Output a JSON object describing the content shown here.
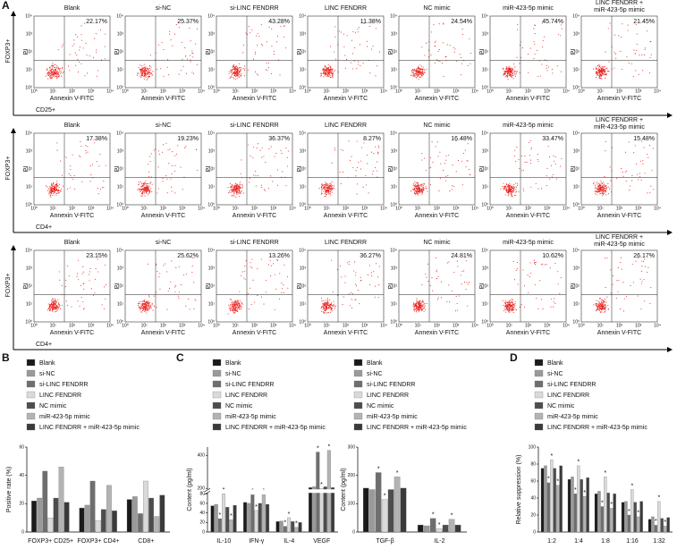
{
  "panel_labels": [
    "A",
    "B",
    "C",
    "D"
  ],
  "flow": {
    "titles": [
      "Blank",
      "si-NC",
      "si-LINC FENDRR",
      "LINC FENDRR",
      "NC mimic",
      "miR-423-5p mimic",
      [
        "LINC FENDRR +",
        "miR-423-5p mimic"
      ]
    ],
    "y_label": "PI",
    "x_label": "Annexin V-FITC",
    "ticks": [
      "10⁰",
      "10¹",
      "10²",
      "10³",
      "10⁴"
    ],
    "rows": [
      {
        "y_axis": "FOXP3+",
        "x_axis": "CD25+",
        "percents": [
          "22.17%",
          "25.37%",
          "43.28%",
          "11.38%",
          "24.54%",
          "45.74%",
          "21.45%"
        ]
      },
      {
        "y_axis": "FOXP3+",
        "x_axis": "CD4+",
        "percents": [
          "17.38%",
          "19.23%",
          "36.37%",
          "8.27%",
          "16.48%",
          "33.47%",
          "15.48%"
        ]
      },
      {
        "y_axis": "FOXP3+",
        "x_axis": "CD4+",
        "percents": [
          "23.15%",
          "25.62%",
          "13.26%",
          "36.27%",
          "24.81%",
          "10.62%",
          "26.17%"
        ]
      }
    ]
  },
  "chart_data": [
    {
      "type": "bar",
      "y_label": "Positive rate (%)",
      "categories": [
        "FOXP3+ CD25+",
        "FOXP3+ CD4+",
        "CD8+"
      ],
      "ylim": [
        0,
        60
      ],
      "yticks": [
        0,
        20,
        40,
        60
      ],
      "series": [
        {
          "name": "Blank",
          "color": "#1a1a1a",
          "values": [
            22,
            17,
            23
          ]
        },
        {
          "name": "si-NC",
          "color": "#9a9a9a",
          "values": [
            24,
            19,
            25
          ]
        },
        {
          "name": "si-LINC FENDRR",
          "color": "#6e6e6e",
          "values": [
            43,
            36,
            13
          ]
        },
        {
          "name": "LINC FENDRR",
          "color": "#dadada",
          "values": [
            10,
            8,
            36
          ]
        },
        {
          "name": "NC mimic",
          "color": "#4d4d4d",
          "values": [
            24,
            16,
            24
          ]
        },
        {
          "name": "miR-423-5p mimic",
          "color": "#b3b3b3",
          "values": [
            46,
            33,
            11
          ]
        },
        {
          "name": "LINC FENDRR + miR-423-5p mimic",
          "color": "#3a3a3a",
          "values": [
            21,
            15,
            26
          ]
        }
      ]
    },
    {
      "type": "bar",
      "y_label": "Content (pg/ml)",
      "categories": [
        "IL-10",
        "IFN-γ",
        "IL-4",
        "VEGF"
      ],
      "ylim": [
        0,
        450
      ],
      "ybreak": [
        80,
        200
      ],
      "yticks": [
        0,
        20,
        40,
        60,
        80,
        200,
        400
      ],
      "significance_symbol": "*",
      "significant_series": [
        2,
        3,
        5
      ],
      "series": [
        {
          "name": "Blank",
          "color": "#1a1a1a",
          "values": [
            55,
            62,
            22,
            205
          ]
        },
        {
          "name": "si-NC",
          "color": "#9a9a9a",
          "values": [
            58,
            60,
            23,
            210
          ]
        },
        {
          "name": "si-LINC FENDRR",
          "color": "#6e6e6e",
          "values": [
            28,
            78,
            12,
            420
          ]
        },
        {
          "name": "LINC FENDRR",
          "color": "#dadada",
          "values": [
            80,
            45,
            30,
            200
          ]
        },
        {
          "name": "NC mimic",
          "color": "#4d4d4d",
          "values": [
            52,
            60,
            22,
            210
          ]
        },
        {
          "name": "miR-423-5p mimic",
          "color": "#b3b3b3",
          "values": [
            26,
            78,
            10,
            430
          ]
        },
        {
          "name": "LINC FENDRR + miR-423-5p mimic",
          "color": "#3a3a3a",
          "values": [
            56,
            58,
            20,
            205
          ]
        }
      ]
    },
    {
      "type": "bar",
      "y_label": "Content (pg/ml)",
      "categories": [
        "TGF-β",
        "IL-2"
      ],
      "ylim": [
        0,
        300
      ],
      "yticks": [
        0,
        100,
        200,
        300
      ],
      "significance_symbol": "*",
      "significant_series": [
        2,
        3,
        5
      ],
      "series": [
        {
          "name": "Blank",
          "color": "#1a1a1a",
          "values": [
            155,
            25
          ]
        },
        {
          "name": "si-NC",
          "color": "#9a9a9a",
          "values": [
            150,
            22
          ]
        },
        {
          "name": "si-LINC FENDRR",
          "color": "#6e6e6e",
          "values": [
            210,
            48
          ]
        },
        {
          "name": "LINC FENDRR",
          "color": "#dadada",
          "values": [
            115,
            12
          ]
        },
        {
          "name": "NC mimic",
          "color": "#4d4d4d",
          "values": [
            150,
            25
          ]
        },
        {
          "name": "miR-423-5p mimic",
          "color": "#b3b3b3",
          "values": [
            195,
            45
          ]
        },
        {
          "name": "LINC FENDRR + miR-423-5p mimic",
          "color": "#3a3a3a",
          "values": [
            155,
            25
          ]
        }
      ]
    },
    {
      "type": "bar",
      "y_label": "Relative suppression (%)",
      "categories": [
        "1:2",
        "1:4",
        "1:8",
        "1:16",
        "1:32"
      ],
      "ylim": [
        0,
        100
      ],
      "yticks": [
        0,
        20,
        40,
        60,
        80,
        100
      ],
      "significance_symbol": "*",
      "significant_series": [
        2,
        3,
        5
      ],
      "series": [
        {
          "name": "Blank",
          "color": "#1a1a1a",
          "values": [
            75,
            62,
            45,
            35,
            15
          ]
        },
        {
          "name": "si-NC",
          "color": "#9a9a9a",
          "values": [
            78,
            65,
            48,
            36,
            18
          ]
        },
        {
          "name": "si-LINC FENDRR",
          "color": "#6e6e6e",
          "values": [
            58,
            45,
            30,
            20,
            8
          ]
        },
        {
          "name": "LINC FENDRR",
          "color": "#dadada",
          "values": [
            85,
            78,
            65,
            50,
            36
          ]
        },
        {
          "name": "NC mimic",
          "color": "#4d4d4d",
          "values": [
            75,
            62,
            46,
            35,
            16
          ]
        },
        {
          "name": "miR-423-5p mimic",
          "color": "#b3b3b3",
          "values": [
            55,
            42,
            28,
            18,
            7
          ]
        },
        {
          "name": "LINC FENDRR + miR-423-5p mimic",
          "color": "#3a3a3a",
          "values": [
            78,
            64,
            45,
            36,
            17
          ]
        }
      ]
    }
  ]
}
